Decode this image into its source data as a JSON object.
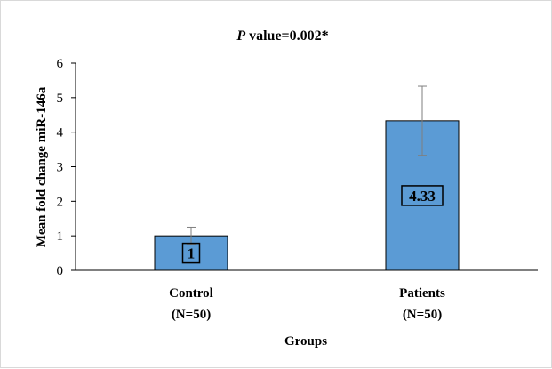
{
  "chart_data": {
    "type": "bar",
    "title": {
      "italic": "P",
      "rest": " value=0.002*"
    },
    "xlabel": "Groups",
    "ylabel": "Mean fold change miR-146a",
    "ylim": [
      0,
      6
    ],
    "yticks": [
      "0",
      "1",
      "2",
      "3",
      "4",
      "5",
      "6"
    ],
    "categories": [
      {
        "line1": "Control",
        "line2": "(N=50)"
      },
      {
        "line1": "Patients",
        "line2": "(N=50)"
      }
    ],
    "values": [
      1,
      4.33
    ],
    "errors": [
      0.25,
      1.0
    ],
    "data_labels": [
      "1",
      "4.33"
    ],
    "bar_color": "#5b9bd5",
    "error_color": "#7f7f7f"
  }
}
